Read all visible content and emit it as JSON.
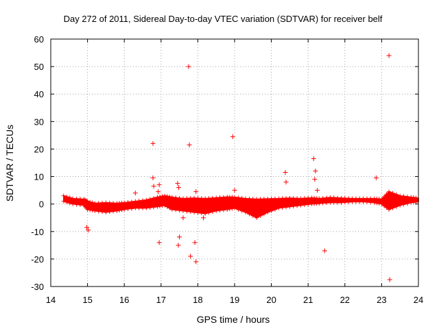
{
  "chart_data": {
    "type": "scatter",
    "title": "Day 272 of 2011, Sidereal Day-to-day VTEC variation (SDTVAR) for receiver belf",
    "xlabel": "GPS time / hours",
    "ylabel": "SDTVAR / TECUs",
    "xlim": [
      14,
      24
    ],
    "ylim": [
      -30,
      60
    ],
    "xticks": [
      "14",
      "15",
      "16",
      "17",
      "18",
      "19",
      "20",
      "21",
      "22",
      "23",
      "24"
    ],
    "yticks": [
      "-30",
      "-20",
      "-10",
      "0",
      "10",
      "20",
      "30",
      "40",
      "50",
      "60"
    ],
    "grid": true,
    "marker": "+",
    "color": "#ff0000",
    "band": {
      "description": "dense band of points around zero",
      "x": [
        14.35,
        14.6,
        14.9,
        15.0,
        15.2,
        15.5,
        15.8,
        16.0,
        16.3,
        16.6,
        16.9,
        17.1,
        17.3,
        17.6,
        17.9,
        18.2,
        18.5,
        18.8,
        19.0,
        19.3,
        19.6,
        19.9,
        20.2,
        20.5,
        20.8,
        21.1,
        21.3,
        21.6,
        21.9,
        22.2,
        22.5,
        22.8,
        23.0,
        23.2,
        23.5,
        23.8,
        24.0
      ],
      "upper": [
        3.0,
        2.0,
        1.8,
        1.0,
        0.3,
        0.5,
        0.3,
        0.5,
        1.0,
        1.5,
        2.5,
        3.0,
        2.5,
        2.0,
        2.2,
        2.0,
        2.3,
        2.6,
        2.5,
        2.0,
        1.8,
        1.9,
        2.0,
        2.2,
        2.0,
        2.3,
        2.0,
        2.4,
        2.2,
        2.0,
        2.0,
        2.0,
        1.8,
        4.5,
        3.0,
        2.5,
        2.2
      ],
      "lower": [
        1.0,
        0.0,
        -0.5,
        -2.0,
        -2.5,
        -3.0,
        -2.5,
        -2.0,
        -1.5,
        -1.5,
        -1.0,
        -0.5,
        -2.0,
        -2.5,
        -3.0,
        -3.5,
        -2.5,
        -2.0,
        -1.5,
        -3.0,
        -5.0,
        -3.0,
        -1.5,
        -1.0,
        -0.5,
        0.0,
        0.2,
        0.5,
        0.5,
        0.8,
        0.8,
        0.5,
        0.0,
        -2.0,
        -0.5,
        0.5,
        0.8
      ]
    },
    "outliers": {
      "x": [
        17.75,
        23.2,
        18.95,
        16.78,
        17.77,
        21.15,
        21.2,
        20.38,
        16.78,
        22.85,
        21.18,
        17.45,
        16.95,
        20.4,
        16.8,
        19.0,
        17.48,
        21.25,
        17.95,
        16.3,
        16.92,
        17.47,
        17.6,
        18.15,
        14.98,
        15.02,
        16.95,
        17.5,
        17.92,
        21.45,
        17.8,
        17.95,
        23.22
      ],
      "y": [
        50,
        54,
        24.5,
        22,
        21.5,
        16.5,
        12,
        11.5,
        9.5,
        9.5,
        9,
        7.5,
        7,
        8,
        6.5,
        5,
        6,
        5,
        4.5,
        4,
        4.5,
        -15,
        -5,
        -5,
        -8.5,
        -9.5,
        -14,
        -12,
        -14,
        -17,
        -19,
        -21,
        -27.5
      ]
    }
  }
}
